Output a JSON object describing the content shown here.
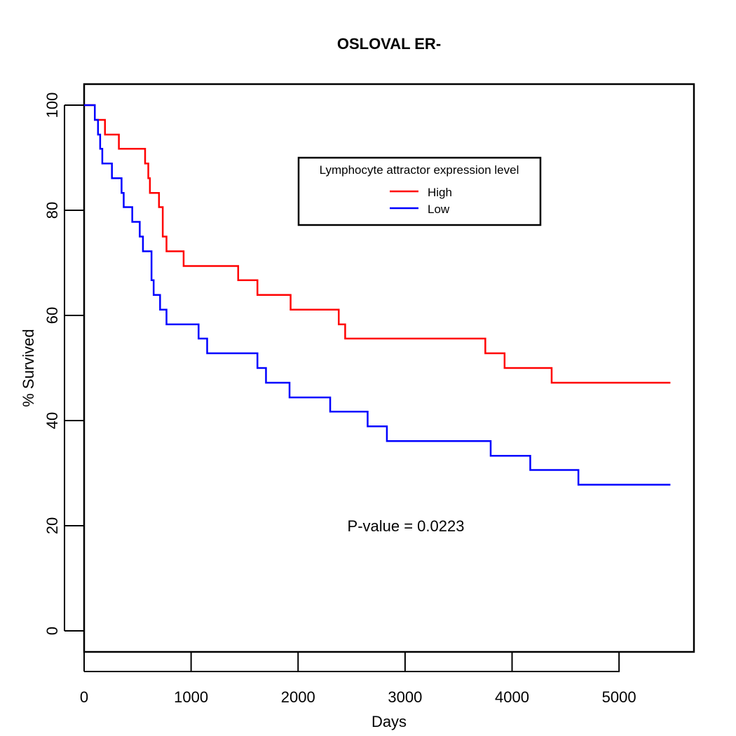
{
  "chart_data": {
    "type": "line",
    "title": "OSLOVAL ER-",
    "xlabel": "Days",
    "ylabel": "% Survived",
    "xlim": [
      0,
      5700
    ],
    "ylim": [
      -4,
      104
    ],
    "x_ticks": [
      "0",
      "1000",
      "2000",
      "3000",
      "4000",
      "5000"
    ],
    "y_ticks": [
      "0",
      "20",
      "40",
      "60",
      "80",
      "100"
    ],
    "legend": {
      "title": "Lymphocyte attractor expression level",
      "placement": "top-right"
    },
    "annotation": "P-value =  0.0223",
    "series": [
      {
        "name": "High",
        "color": "#ff0000",
        "steps": [
          [
            0,
            100
          ],
          [
            100,
            97.2
          ],
          [
            195,
            94.4
          ],
          [
            325,
            91.7
          ],
          [
            570,
            88.9
          ],
          [
            600,
            86.1
          ],
          [
            615,
            83.3
          ],
          [
            700,
            80.6
          ],
          [
            735,
            75.0
          ],
          [
            770,
            72.2
          ],
          [
            930,
            69.4
          ],
          [
            1440,
            66.7
          ],
          [
            1620,
            63.9
          ],
          [
            1930,
            61.1
          ],
          [
            2380,
            58.3
          ],
          [
            2440,
            55.6
          ],
          [
            3750,
            52.8
          ],
          [
            3930,
            50.0
          ],
          [
            4370,
            47.2
          ],
          [
            5480,
            47.2
          ]
        ]
      },
      {
        "name": "Low",
        "color": "#0000ff",
        "steps": [
          [
            0,
            100
          ],
          [
            100,
            97.2
          ],
          [
            130,
            94.4
          ],
          [
            150,
            91.7
          ],
          [
            170,
            88.9
          ],
          [
            260,
            86.1
          ],
          [
            350,
            83.3
          ],
          [
            370,
            80.6
          ],
          [
            450,
            77.8
          ],
          [
            520,
            75.0
          ],
          [
            550,
            72.2
          ],
          [
            630,
            66.7
          ],
          [
            650,
            63.9
          ],
          [
            710,
            61.1
          ],
          [
            770,
            58.3
          ],
          [
            1070,
            55.6
          ],
          [
            1150,
            52.8
          ],
          [
            1620,
            50.0
          ],
          [
            1700,
            47.2
          ],
          [
            1920,
            44.4
          ],
          [
            2300,
            41.7
          ],
          [
            2650,
            38.9
          ],
          [
            2830,
            36.1
          ],
          [
            3800,
            33.3
          ],
          [
            4170,
            30.6
          ],
          [
            4620,
            27.8
          ],
          [
            5480,
            27.8
          ]
        ]
      }
    ]
  }
}
